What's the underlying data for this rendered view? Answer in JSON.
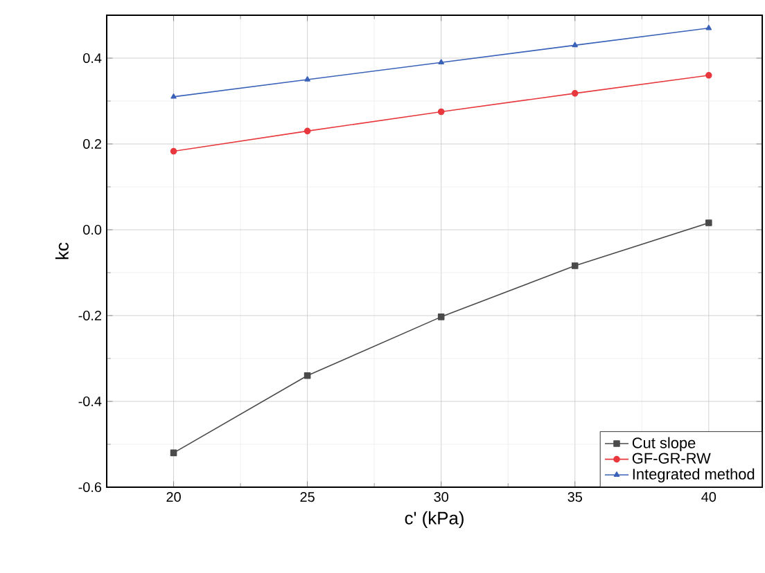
{
  "chart_data": {
    "type": "line",
    "xlabel": "c' (kPa)",
    "ylabel": "kc",
    "x": [
      20,
      25,
      30,
      35,
      40
    ],
    "series": [
      {
        "name": "Cut slope",
        "color": "#4a4a4a",
        "marker": "square",
        "values": [
          -0.52,
          -0.34,
          -0.203,
          -0.084,
          0.016
        ]
      },
      {
        "name": "GF-GR-RW",
        "color": "#e8383d",
        "marker": "circle",
        "values": [
          0.183,
          0.23,
          0.275,
          0.318,
          0.36
        ]
      },
      {
        "name": "Integrated method",
        "color": "#3a62b8",
        "marker": "triangle",
        "values": [
          0.31,
          0.35,
          0.39,
          0.43,
          0.47
        ]
      }
    ],
    "xlim": [
      17.5,
      42
    ],
    "ylim": [
      -0.6,
      0.5
    ],
    "xticks": [
      20,
      25,
      30,
      35,
      40
    ],
    "yticks": [
      -0.6,
      -0.4,
      -0.2,
      {
        "value": 0,
        "label": "0.0"
      },
      0.2,
      0.4
    ],
    "grid": true,
    "legend": "bottom right",
    "line_style": "solid"
  }
}
